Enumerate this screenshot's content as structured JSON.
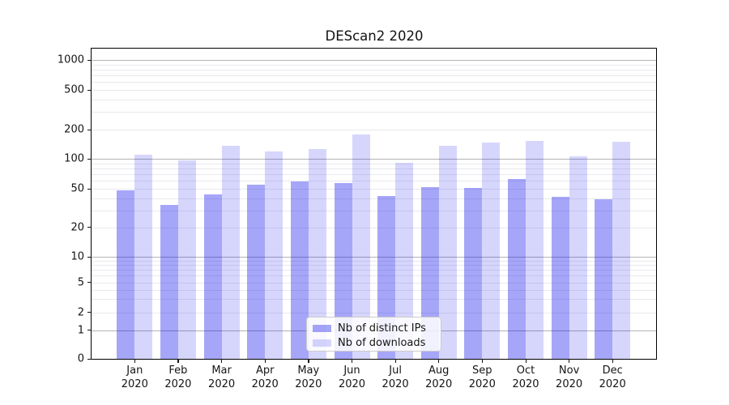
{
  "chart_data": {
    "type": "bar",
    "title": "DEScan2 2020",
    "categories": [
      "Jan",
      "Feb",
      "Mar",
      "Apr",
      "May",
      "Jun",
      "Jul",
      "Aug",
      "Sep",
      "Oct",
      "Nov",
      "Dec"
    ],
    "x_tick_second_line": "2020",
    "series": [
      {
        "name": "Nb of distinct IPs",
        "color": "rgba(0,0,235,0.35)",
        "values": [
          48,
          34,
          44,
          55,
          59,
          57,
          42,
          52,
          51,
          63,
          41,
          39
        ]
      },
      {
        "name": "Nb of downloads",
        "color": "rgba(0,0,235,0.16)",
        "values": [
          110,
          97,
          136,
          120,
          125,
          177,
          92,
          136,
          148,
          152,
          106,
          150
        ]
      }
    ],
    "yscale": "symlog",
    "ylim": [
      0,
      1300
    ],
    "y_ticks": [
      0,
      1,
      2,
      5,
      10,
      20,
      50,
      100,
      200,
      500,
      1000
    ],
    "y_major_gridlines": [
      1,
      10,
      100,
      1000
    ],
    "y_minor_gridlines": [
      2,
      3,
      4,
      5,
      6,
      7,
      8,
      9,
      20,
      30,
      40,
      50,
      60,
      70,
      80,
      90,
      200,
      300,
      400,
      500,
      600,
      700,
      800,
      900
    ],
    "grid": true,
    "legend_location": "lower center",
    "colors": {
      "major_grid": "#b3b3b3",
      "minor_grid": "#e9e9ef",
      "spine": "#000000",
      "text": "#151515",
      "bar_distinct_ips_rendered": "#a7a7f7",
      "bar_downloads_rendered": "#d8d8fa"
    }
  }
}
